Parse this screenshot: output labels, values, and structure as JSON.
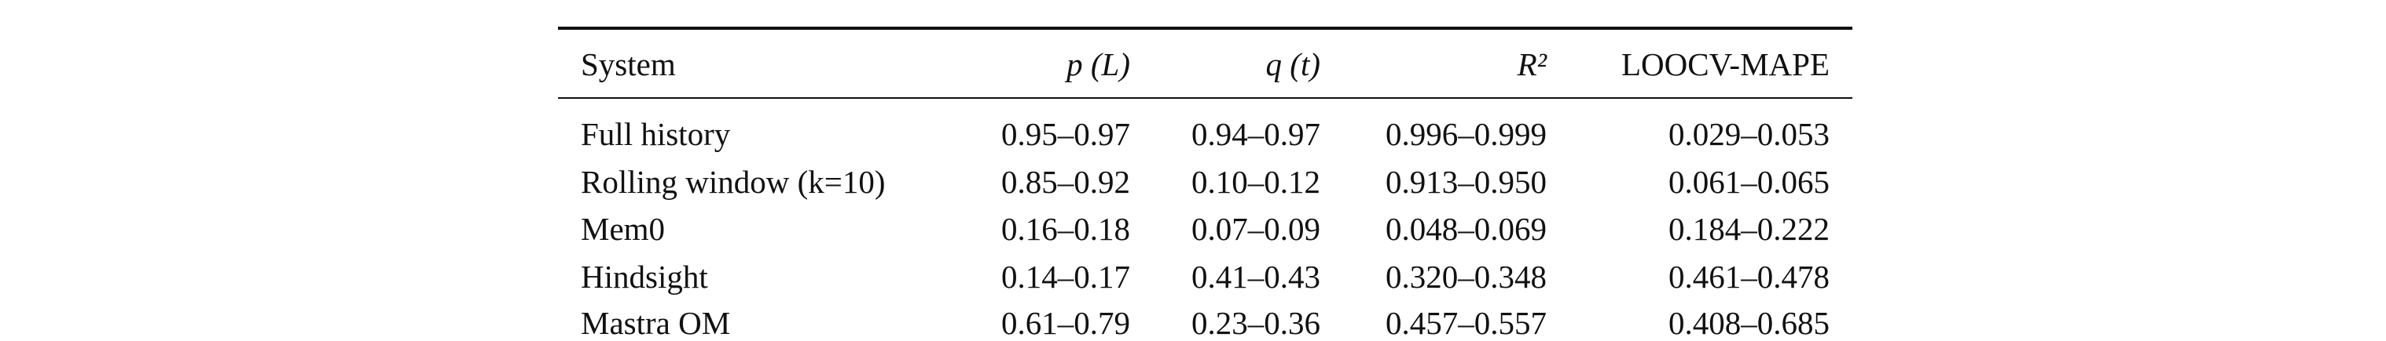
{
  "table": {
    "header": [
      "System",
      "p (L)",
      "q (t)",
      "R²",
      "LOOCV-MAPE"
    ],
    "rows": [
      [
        "Full history",
        "0.95–0.97",
        "0.94–0.97",
        "0.996–0.999",
        "0.029–0.053"
      ],
      [
        "Rolling window (k=10)",
        "0.85–0.92",
        "0.10–0.12",
        "0.913–0.950",
        "0.061–0.065"
      ],
      [
        "Mem0",
        "0.16–0.18",
        "0.07–0.09",
        "0.048–0.069",
        "0.184–0.222"
      ],
      [
        "Hindsight",
        "0.14–0.17",
        "0.41–0.43",
        "0.320–0.348",
        "0.461–0.478"
      ],
      [
        "Mastra OM",
        "0.61–0.79",
        "0.23–0.36",
        "0.457–0.557",
        "0.408–0.685"
      ]
    ]
  }
}
